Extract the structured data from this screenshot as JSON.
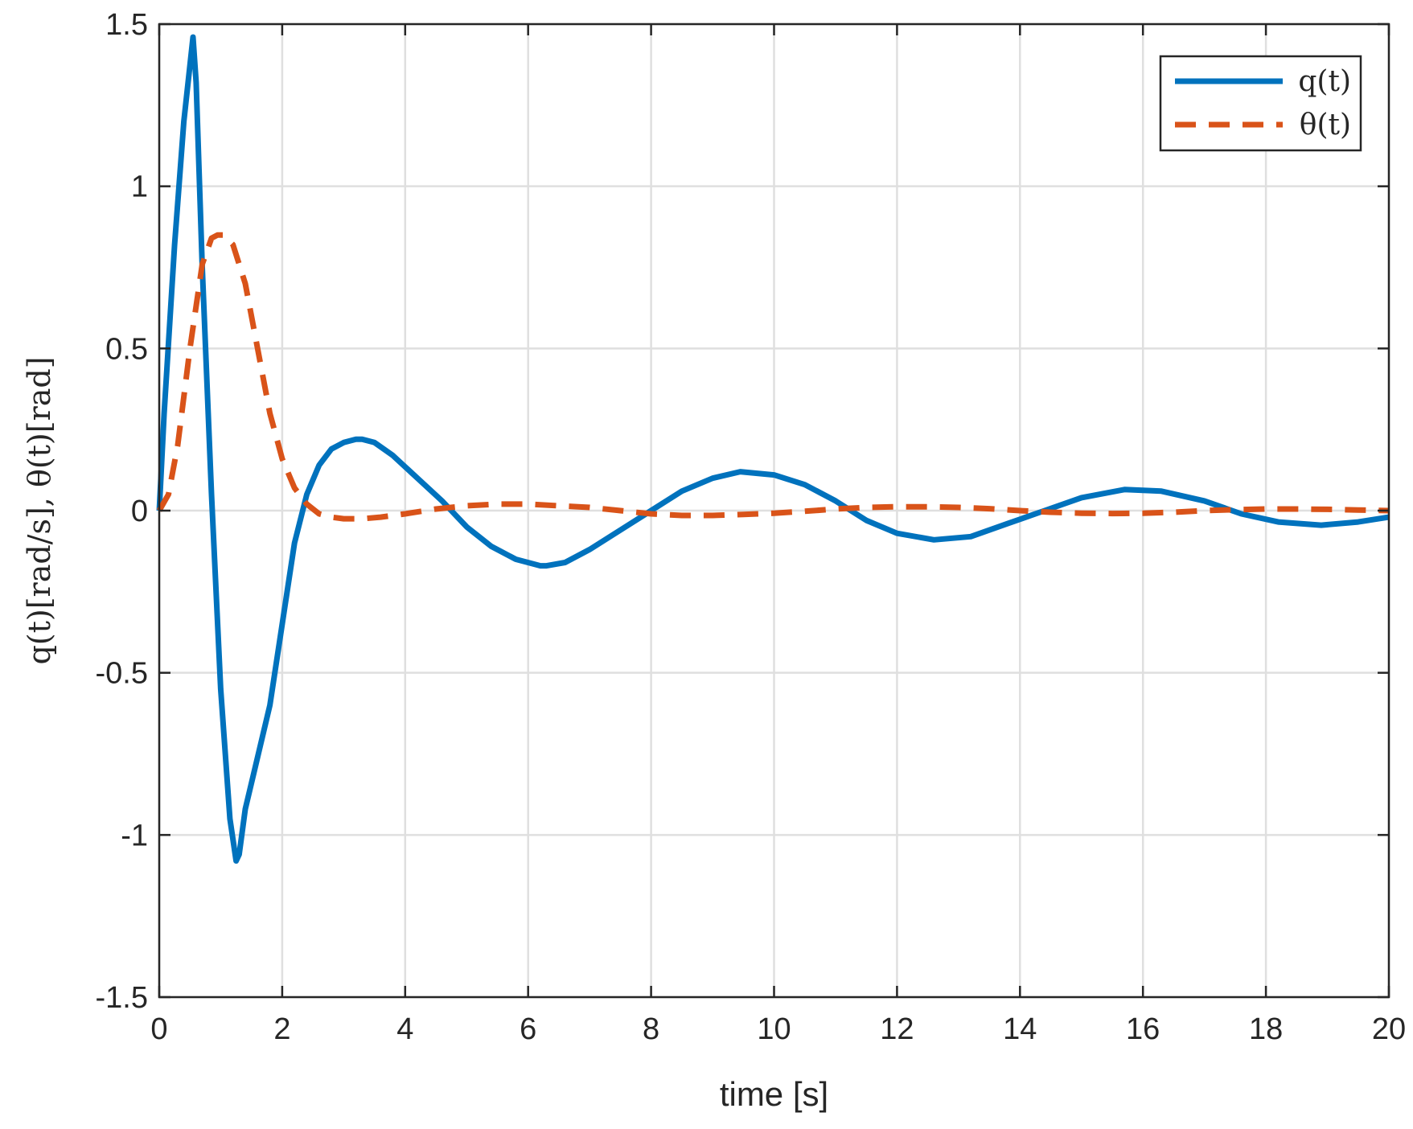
{
  "chart_data": {
    "type": "line",
    "title": "",
    "xlabel": "time [s]",
    "ylabel": "q(t)[rad/s], θ(t)[rad]",
    "xlim": [
      0,
      20
    ],
    "ylim": [
      -1.5,
      1.5
    ],
    "xticks": [
      "0",
      "2",
      "4",
      "6",
      "8",
      "10",
      "12",
      "14",
      "16",
      "18",
      "20"
    ],
    "yticks": [
      "-1.5",
      "-1",
      "-0.5",
      "0",
      "0.5",
      "1",
      "1.5"
    ],
    "grid": true,
    "legend_position": "top-right",
    "series": [
      {
        "name": "q(t)",
        "style": "solid",
        "color": "#0072BD",
        "x": [
          0,
          0.08,
          0.25,
          0.4,
          0.55,
          0.6,
          0.7,
          0.85,
          1.0,
          1.15,
          1.25,
          1.3,
          1.4,
          1.55,
          1.8,
          2.0,
          2.2,
          2.4,
          2.6,
          2.8,
          3.0,
          3.2,
          3.3,
          3.5,
          3.8,
          4.2,
          4.6,
          5.0,
          5.4,
          5.8,
          6.2,
          6.3,
          6.6,
          7.0,
          7.5,
          8.0,
          8.5,
          9.0,
          9.45,
          10.0,
          10.5,
          11.0,
          11.5,
          12.0,
          12.6,
          13.2,
          13.8,
          14.4,
          15.0,
          15.7,
          16.3,
          17.0,
          17.6,
          18.2,
          18.9,
          19.5,
          20.0
        ],
        "values": [
          0,
          0.3,
          0.82,
          1.2,
          1.46,
          1.32,
          0.75,
          0.05,
          -0.55,
          -0.95,
          -1.08,
          -1.06,
          -0.92,
          -0.8,
          -0.6,
          -0.35,
          -0.1,
          0.05,
          0.14,
          0.19,
          0.21,
          0.22,
          0.22,
          0.21,
          0.17,
          0.1,
          0.03,
          -0.05,
          -0.11,
          -0.15,
          -0.17,
          -0.17,
          -0.16,
          -0.12,
          -0.06,
          0.0,
          0.06,
          0.1,
          0.12,
          0.11,
          0.08,
          0.03,
          -0.03,
          -0.07,
          -0.09,
          -0.08,
          -0.04,
          0.0,
          0.04,
          0.065,
          0.06,
          0.03,
          -0.01,
          -0.035,
          -0.045,
          -0.035,
          -0.02
        ]
      },
      {
        "name": "θ(t)",
        "style": "dashed",
        "color": "#D95319",
        "x": [
          0,
          0.15,
          0.3,
          0.5,
          0.7,
          0.85,
          0.95,
          1.05,
          1.2,
          1.4,
          1.6,
          1.8,
          2.0,
          2.2,
          2.4,
          2.6,
          2.8,
          3.0,
          3.3,
          3.6,
          4.0,
          4.5,
          5.0,
          5.5,
          6.0,
          6.5,
          7.0,
          7.5,
          8.0,
          8.5,
          9.0,
          9.5,
          10.0,
          10.5,
          11.0,
          11.5,
          12.0,
          12.5,
          13.0,
          13.5,
          14.0,
          14.5,
          15.0,
          15.5,
          16.0,
          16.5,
          17.0,
          17.5,
          18.0,
          18.5,
          19.0,
          19.5,
          20.0
        ],
        "values": [
          0,
          0.05,
          0.2,
          0.5,
          0.76,
          0.84,
          0.85,
          0.85,
          0.82,
          0.7,
          0.5,
          0.3,
          0.16,
          0.07,
          0.02,
          -0.01,
          -0.02,
          -0.025,
          -0.025,
          -0.02,
          -0.01,
          0.005,
          0.015,
          0.02,
          0.02,
          0.015,
          0.01,
          0.0,
          -0.01,
          -0.015,
          -0.015,
          -0.012,
          -0.008,
          -0.002,
          0.005,
          0.01,
          0.012,
          0.012,
          0.01,
          0.006,
          0.0,
          -0.005,
          -0.008,
          -0.009,
          -0.008,
          -0.005,
          0.0,
          0.003,
          0.005,
          0.005,
          0.004,
          0.002,
          0.0
        ]
      }
    ]
  }
}
